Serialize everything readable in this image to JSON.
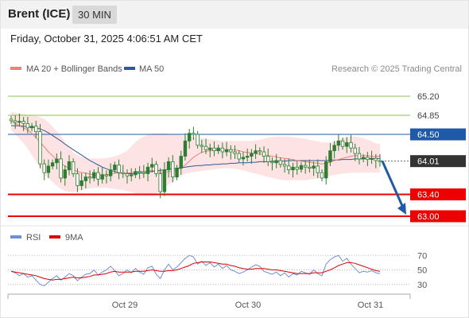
{
  "header": {
    "instrument": "Brent (ICE)",
    "timeframe": "30 MIN",
    "timestamp": "Friday, October 31, 2025 4:06:51 AM CET"
  },
  "legend": {
    "ma20_label": "MA 20 + Bollinger Bands",
    "ma50_label": "MA 50",
    "credit": "Research © 2025 Trading Central"
  },
  "colors": {
    "ma20": "#f08080",
    "band_fill": "#fde3e3",
    "ma50": "#2f5a9a",
    "candle": "#2e7d32",
    "support": "#ee0000",
    "resistance": "#8bc34a",
    "pivot": "#1e5aa8",
    "last": "#333333",
    "rsi": "#6e8fd8",
    "rsi_ma": "#dd0000"
  },
  "chart_data": [
    {
      "type": "candlestick",
      "ylim": [
        62.85,
        65.45
      ],
      "levels": [
        {
          "label": "65.20",
          "value": 65.2,
          "kind": "resistance"
        },
        {
          "label": "64.85",
          "value": 64.85,
          "kind": "resistance"
        },
        {
          "label": "64.50",
          "value": 64.5,
          "kind": "pivot"
        },
        {
          "label": "64.01",
          "value": 64.01,
          "kind": "last"
        },
        {
          "label": "63.40",
          "value": 63.4,
          "kind": "support"
        },
        {
          "label": "63.00",
          "value": 63.0,
          "kind": "support"
        }
      ],
      "forecast": {
        "from": 64.01,
        "to": 63.0
      },
      "close": [
        64.75,
        64.72,
        64.74,
        64.7,
        64.62,
        64.65,
        64.55,
        63.96,
        63.8,
        63.92,
        63.98,
        64.05,
        63.7,
        63.85,
        64.0,
        63.78,
        63.56,
        63.65,
        63.72,
        63.7,
        63.8,
        63.68,
        63.76,
        63.74,
        63.85,
        63.94,
        63.8,
        63.78,
        63.74,
        63.76,
        63.82,
        63.8,
        63.78,
        63.9,
        63.95,
        63.78,
        63.45,
        63.85,
        64.0,
        63.72,
        63.88,
        64.1,
        64.38,
        64.52,
        64.5,
        64.3,
        64.28,
        64.22,
        64.25,
        64.2,
        64.25,
        64.18,
        64.22,
        64.18,
        64.15,
        64.05,
        64.08,
        64.1,
        64.15,
        64.2,
        64.18,
        64.1,
        64.0,
        63.98,
        64.02,
        63.95,
        63.92,
        63.85,
        63.9,
        63.86,
        63.93,
        63.9,
        63.88,
        63.92,
        63.8,
        63.7,
        64.0,
        64.2,
        64.3,
        64.38,
        64.28,
        64.35,
        64.25,
        64.15,
        64.05,
        64.08,
        64.04,
        64.06,
        64.02,
        64.01
      ],
      "ma20": [
        64.75,
        64.7,
        64.66,
        64.62,
        64.58,
        64.52,
        64.44,
        64.36,
        64.27,
        64.18,
        64.11,
        64.03,
        63.97,
        63.92,
        63.88,
        63.85,
        63.82,
        63.8,
        63.79,
        63.77,
        63.76,
        63.76,
        63.76,
        63.76,
        63.77,
        63.79,
        63.79,
        63.79,
        63.79,
        63.8,
        63.81,
        63.82,
        63.82,
        63.83,
        63.84,
        63.82,
        63.8,
        63.8,
        63.82,
        63.82,
        63.84,
        63.89,
        63.94,
        64.01,
        64.08,
        64.13,
        64.17,
        64.19,
        64.2,
        64.21,
        64.22,
        64.22,
        64.22,
        64.22,
        64.22,
        64.2,
        64.18,
        64.17,
        64.16,
        64.15,
        64.14,
        64.13,
        64.11,
        64.1,
        64.09,
        64.07,
        64.06,
        64.05,
        64.04,
        64.02,
        64.01,
        64.0,
        63.99,
        63.98,
        63.97,
        63.96,
        63.97,
        63.99,
        64.02,
        64.04,
        64.06,
        64.08,
        64.1,
        64.11,
        64.11,
        64.11,
        64.11,
        64.1,
        64.1,
        64.1
      ],
      "ma50": [
        64.66,
        64.66,
        64.66,
        64.65,
        64.64,
        64.63,
        64.62,
        64.6,
        64.57,
        64.53,
        64.48,
        64.43,
        64.38,
        64.32,
        64.27,
        64.22,
        64.17,
        64.12,
        64.07,
        64.02,
        63.98,
        63.94,
        63.9,
        63.87,
        63.84,
        63.82,
        63.8,
        63.79,
        63.78,
        63.78,
        63.78,
        63.79,
        63.8,
        63.81,
        63.82,
        63.83,
        63.84,
        63.85,
        63.86,
        63.87,
        63.88,
        63.89,
        63.9,
        63.91,
        63.92,
        63.93,
        63.93,
        63.94,
        63.94,
        63.95,
        63.95,
        63.96,
        63.96,
        63.97,
        63.97,
        63.98,
        63.98,
        63.98,
        63.99,
        63.99,
        64.0,
        64.0,
        64.0,
        64.01,
        64.01,
        64.01,
        64.01,
        64.02,
        64.02,
        64.02,
        64.02,
        64.02,
        64.02,
        64.02,
        64.02,
        64.02,
        64.02,
        64.03,
        64.03,
        64.03,
        64.04,
        64.04,
        64.04,
        64.05,
        64.05,
        64.05,
        64.06,
        64.06,
        64.06,
        64.06
      ],
      "upper": [
        64.92,
        64.9,
        64.88,
        64.87,
        64.86,
        64.85,
        64.84,
        64.82,
        64.78,
        64.72,
        64.64,
        64.56,
        64.47,
        64.37,
        64.27,
        64.17,
        64.12,
        64.09,
        64.07,
        64.06,
        64.06,
        64.06,
        64.06,
        64.07,
        64.08,
        64.1,
        64.12,
        64.16,
        64.2,
        64.28,
        64.36,
        64.42,
        64.46,
        64.49,
        64.51,
        64.52,
        64.52,
        64.52,
        64.51,
        64.5,
        64.49,
        64.48,
        64.47,
        64.46,
        64.45,
        64.44,
        64.43,
        64.42,
        64.41,
        64.4,
        64.39,
        64.38,
        64.38,
        64.38,
        64.38,
        64.38,
        64.38,
        64.38,
        64.38,
        64.39,
        64.4,
        64.42,
        64.44,
        64.45,
        64.46,
        64.46,
        64.46,
        64.46,
        64.45,
        64.44,
        64.43,
        64.42,
        64.4,
        64.39,
        64.37,
        64.36,
        64.35,
        64.35,
        64.37,
        64.4,
        64.43,
        64.45,
        64.46,
        64.46,
        64.45,
        64.43,
        64.4,
        64.37,
        64.34,
        64.32
      ],
      "lower": [
        64.58,
        64.5,
        64.42,
        64.34,
        64.24,
        64.12,
        64.0,
        63.88,
        63.78,
        63.7,
        63.63,
        63.56,
        63.5,
        63.46,
        63.44,
        63.44,
        63.46,
        63.48,
        63.5,
        63.51,
        63.52,
        63.52,
        63.52,
        63.52,
        63.51,
        63.5,
        63.49,
        63.48,
        63.46,
        63.44,
        63.42,
        63.4,
        63.38,
        63.38,
        63.39,
        63.42,
        63.46,
        63.52,
        63.58,
        63.64,
        63.7,
        63.74,
        63.78,
        63.8,
        63.81,
        63.82,
        63.83,
        63.84,
        63.85,
        63.86,
        63.87,
        63.88,
        63.88,
        63.88,
        63.87,
        63.86,
        63.84,
        63.82,
        63.8,
        63.78,
        63.76,
        63.74,
        63.72,
        63.7,
        63.68,
        63.67,
        63.66,
        63.66,
        63.66,
        63.66,
        63.66,
        63.66,
        63.67,
        63.68,
        63.69,
        63.7,
        63.72,
        63.74,
        63.76,
        63.77,
        63.78,
        63.79,
        63.79,
        63.8,
        63.8,
        63.8,
        63.8,
        63.8,
        63.8,
        63.8
      ]
    },
    {
      "type": "line",
      "series": [
        {
          "name": "RSI"
        },
        {
          "name": "9MA"
        }
      ],
      "ylim": [
        20,
        80
      ],
      "yticks": [
        70,
        50,
        30
      ],
      "xticks": [
        "Oct 29",
        "Oct 30",
        "Oct 31"
      ],
      "rsi": [
        48,
        46,
        42,
        45,
        40,
        42,
        36,
        30,
        28,
        33,
        38,
        42,
        36,
        40,
        45,
        42,
        35,
        40,
        44,
        45,
        50,
        43,
        47,
        50,
        55,
        49,
        42,
        45,
        50,
        46,
        52,
        47,
        44,
        53,
        55,
        44,
        38,
        50,
        58,
        50,
        54,
        60,
        66,
        70,
        68,
        58,
        62,
        56,
        60,
        54,
        58,
        52,
        56,
        50,
        48,
        45,
        47,
        50,
        54,
        57,
        55,
        48,
        46,
        44,
        47,
        42,
        46,
        40,
        45,
        43,
        48,
        46,
        44,
        50,
        45,
        42,
        58,
        64,
        68,
        70,
        62,
        66,
        58,
        52,
        46,
        48,
        47,
        49,
        46,
        45
      ],
      "rsi_ma": [
        48,
        47,
        46,
        45,
        44,
        43,
        42,
        40,
        38,
        37,
        36,
        37,
        37,
        38,
        39,
        40,
        39,
        39,
        40,
        41,
        43,
        43,
        44,
        45,
        47,
        48,
        47,
        47,
        47,
        47,
        48,
        48,
        48,
        49,
        50,
        49,
        48,
        48,
        49,
        49,
        50,
        52,
        54,
        56,
        59,
        60,
        61,
        61,
        61,
        60,
        59,
        58,
        58,
        56,
        55,
        53,
        52,
        51,
        51,
        52,
        52,
        52,
        51,
        50,
        50,
        49,
        48,
        47,
        46,
        45,
        45,
        45,
        45,
        46,
        46,
        46,
        48,
        50,
        53,
        56,
        58,
        60,
        60,
        59,
        57,
        55,
        53,
        51,
        49,
        48
      ]
    }
  ]
}
